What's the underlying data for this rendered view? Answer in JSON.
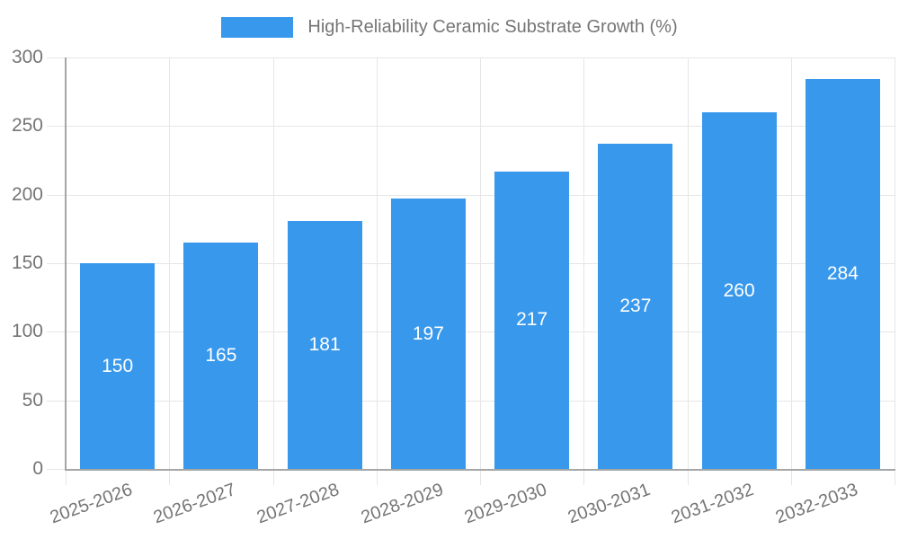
{
  "legend": {
    "label": "High-Reliability Ceramic Substrate Growth (%)"
  },
  "colors": {
    "bar": "#3898ec",
    "grid": "#e6e6e6",
    "axis": "#a6a6a6",
    "tick_text": "#757575",
    "value_label": "#ffffff",
    "background": "#ffffff"
  },
  "chart_data": {
    "type": "bar",
    "title": "High-Reliability Ceramic Substrate Growth (%)",
    "categories": [
      "2025-2026",
      "2026-2027",
      "2027-2028",
      "2028-2029",
      "2029-2030",
      "2030-2031",
      "2031-2032",
      "2032-2033"
    ],
    "series": [
      {
        "name": "High-Reliability Ceramic Substrate Growth (%)",
        "values": [
          150,
          165,
          181,
          197,
          217,
          237,
          260,
          284
        ]
      }
    ],
    "value_labels": [
      "150",
      "165",
      "181",
      "197",
      "217",
      "237",
      "260",
      "284"
    ],
    "value_label_position": "inside-middle",
    "xlabel": "",
    "ylabel": "",
    "ylim": [
      0,
      300
    ],
    "yticks": [
      0,
      50,
      100,
      150,
      200,
      250,
      300
    ],
    "grid": "horizontal and vertical category boundaries",
    "legend_position": "top-center",
    "x_tick_label_rotation_deg": -20
  }
}
